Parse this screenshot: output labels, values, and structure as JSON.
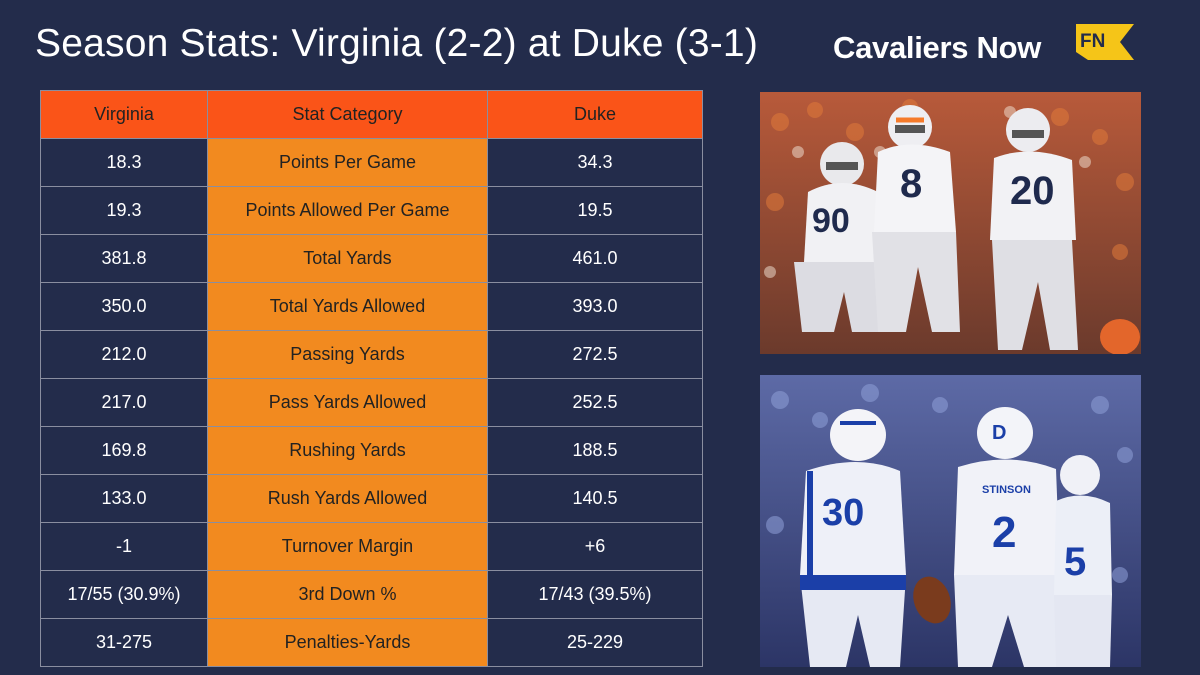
{
  "header": {
    "title": "Season Stats: Virginia (2-2) at Duke (3-1)",
    "brand_name": "Cavaliers Now",
    "brand_badge": "FN"
  },
  "table": {
    "columns": [
      "Virginia",
      "Stat Category",
      "Duke"
    ],
    "rows": [
      {
        "virginia": "18.3",
        "category": "Points Per Game",
        "duke": "34.3"
      },
      {
        "virginia": "19.3",
        "category": "Points Allowed Per Game",
        "duke": "19.5"
      },
      {
        "virginia": "381.8",
        "category": "Total Yards",
        "duke": "461.0"
      },
      {
        "virginia": "350.0",
        "category": "Total Yards Allowed",
        "duke": "393.0"
      },
      {
        "virginia": "212.0",
        "category": "Passing Yards",
        "duke": "272.5"
      },
      {
        "virginia": "217.0",
        "category": "Pass Yards Allowed",
        "duke": "252.5"
      },
      {
        "virginia": "169.8",
        "category": "Rushing Yards",
        "duke": "188.5"
      },
      {
        "virginia": "133.0",
        "category": "Rush Yards Allowed",
        "duke": "140.5"
      },
      {
        "virginia": "-1",
        "category": "Turnover Margin",
        "duke": "+6"
      },
      {
        "virginia": "17/55 (30.9%)",
        "category": "3rd Down %",
        "duke": "17/43 (39.5%)"
      },
      {
        "virginia": "31-275",
        "category": "Penalties-Yards",
        "duke": "25-229"
      }
    ]
  },
  "photos": {
    "virginia_jerseys": [
      "90",
      "8",
      "20"
    ],
    "duke_jerseys": [
      "30",
      "2",
      "5"
    ],
    "duke_nameplate": "STINSON"
  },
  "colors": {
    "background": "#232c4b",
    "header_cell": "#fa5418",
    "category_cell": "#f28a1f",
    "brand_badge": "#f5c518"
  }
}
